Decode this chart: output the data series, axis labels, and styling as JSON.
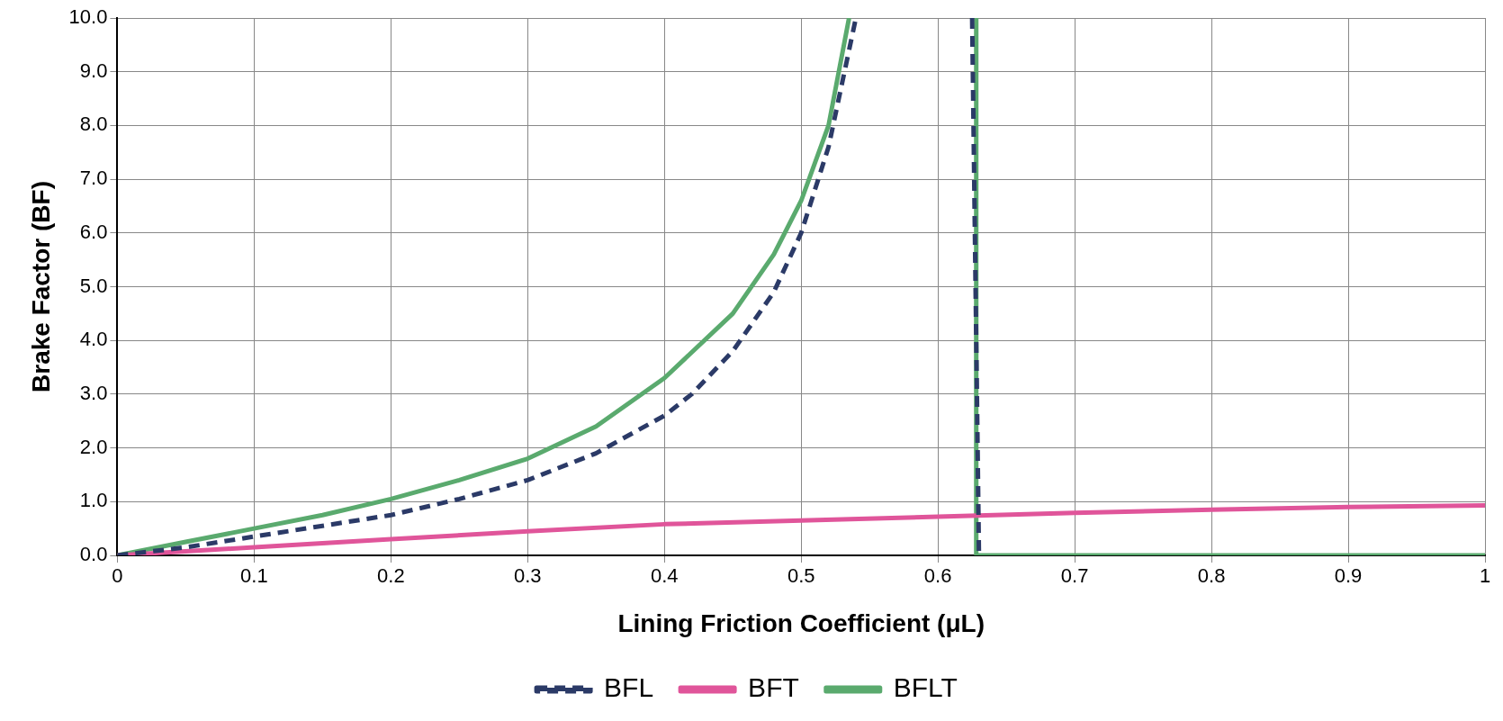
{
  "chart_data": {
    "type": "line",
    "xlabel": "Lining Friction Coefficient (μL)",
    "ylabel": "Brake Factor (BF)",
    "xlim": [
      0,
      1
    ],
    "ylim": [
      0,
      10
    ],
    "xticks": [
      0,
      0.1,
      0.2,
      0.3,
      0.4,
      0.5,
      0.6,
      0.7,
      0.8,
      0.9,
      1
    ],
    "yticks": [
      {
        "value": 0,
        "label": "0.0"
      },
      {
        "value": 1,
        "label": "1.0"
      },
      {
        "value": 2,
        "label": "2.0"
      },
      {
        "value": 3,
        "label": "3.0"
      },
      {
        "value": 4,
        "label": "4.0"
      },
      {
        "value": 5,
        "label": "5.0"
      },
      {
        "value": 6,
        "label": "6.0"
      },
      {
        "value": 7,
        "label": "7.0"
      },
      {
        "value": 8,
        "label": "8.0"
      },
      {
        "value": 9,
        "label": "9.0"
      },
      {
        "value": 10,
        "label": "10.0"
      }
    ],
    "grid": true,
    "legend": "bottom",
    "marker": "none",
    "series": [
      {
        "name": "BFL",
        "color": "#2b3a67",
        "line_style": "dashed",
        "x": [
          0,
          0.05,
          0.1,
          0.15,
          0.2,
          0.25,
          0.3,
          0.35,
          0.4,
          0.42,
          0.45,
          0.48,
          0.5,
          0.52,
          0.54,
          null,
          0.625,
          0.63
        ],
        "values": [
          0,
          0.15,
          0.35,
          0.55,
          0.75,
          1.05,
          1.4,
          1.9,
          2.6,
          3.0,
          3.8,
          4.9,
          6.0,
          7.6,
          10,
          null,
          10,
          0
        ]
      },
      {
        "name": "BFT",
        "color": "#e0559a",
        "line_style": "solid",
        "x": [
          0,
          0.1,
          0.2,
          0.3,
          0.4,
          0.5,
          0.6,
          0.7,
          0.8,
          0.9,
          1
        ],
        "values": [
          0,
          0.15,
          0.3,
          0.45,
          0.58,
          0.65,
          0.72,
          0.79,
          0.85,
          0.9,
          0.93
        ]
      },
      {
        "name": "BFLT",
        "color": "#5aaa6e",
        "line_style": "solid",
        "x": [
          0,
          0.05,
          0.1,
          0.15,
          0.2,
          0.25,
          0.3,
          0.35,
          0.4,
          0.45,
          0.48,
          0.5,
          0.52,
          0.535,
          null,
          0.628,
          0.628,
          1
        ],
        "values": [
          0,
          0.25,
          0.5,
          0.75,
          1.05,
          1.4,
          1.8,
          2.4,
          3.3,
          4.5,
          5.6,
          6.6,
          8.0,
          10,
          null,
          10,
          0,
          0
        ]
      }
    ]
  }
}
